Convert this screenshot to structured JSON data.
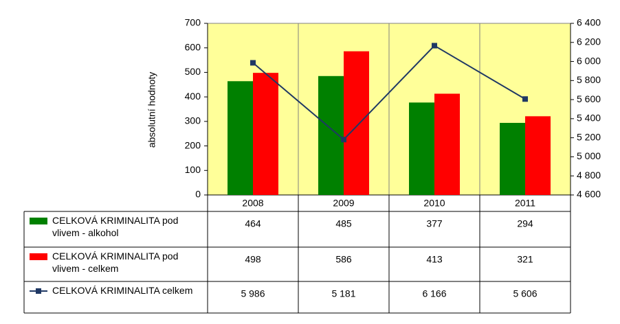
{
  "chart_data": {
    "type": "bar",
    "y_label": "absolutní hodnoty",
    "categories": [
      "2008",
      "2009",
      "2010",
      "2011"
    ],
    "series": [
      {
        "name": "CELKOVÁ KRIMINALITA pod vlivem - alkohol",
        "color": "#008000",
        "type": "bar",
        "values": [
          464,
          485,
          377,
          294
        ]
      },
      {
        "name": "CELKOVÁ KRIMINALITA pod vlivem - celkem",
        "color": "#ff0000",
        "type": "bar",
        "values": [
          498,
          586,
          413,
          321
        ]
      },
      {
        "name": "CELKOVÁ KRIMINALITA celkem",
        "color": "#1f3864",
        "type": "line",
        "axis": "y2",
        "values": [
          5986,
          5181,
          6166,
          5606
        ],
        "value_labels": [
          "5 986",
          "5 181",
          "6 166",
          "5 606"
        ]
      }
    ],
    "ylim": [
      0,
      700
    ],
    "yticks": [
      0,
      100,
      200,
      300,
      400,
      500,
      600,
      700
    ],
    "y2lim": [
      4600,
      6400
    ],
    "y2ticks": [
      {
        "value": 4600,
        "label": "4 600"
      },
      {
        "value": 4800,
        "label": "4 800"
      },
      {
        "value": 5000,
        "label": "5 000"
      },
      {
        "value": 5200,
        "label": "5 200"
      },
      {
        "value": 5400,
        "label": "5 400"
      },
      {
        "value": 5600,
        "label": "5 600"
      },
      {
        "value": 5800,
        "label": "5 800"
      },
      {
        "value": 6000,
        "label": "6 000"
      },
      {
        "value": 6200,
        "label": "6 200"
      },
      {
        "value": 6400,
        "label": "6 400"
      }
    ],
    "plot_background": "#ffff99"
  }
}
